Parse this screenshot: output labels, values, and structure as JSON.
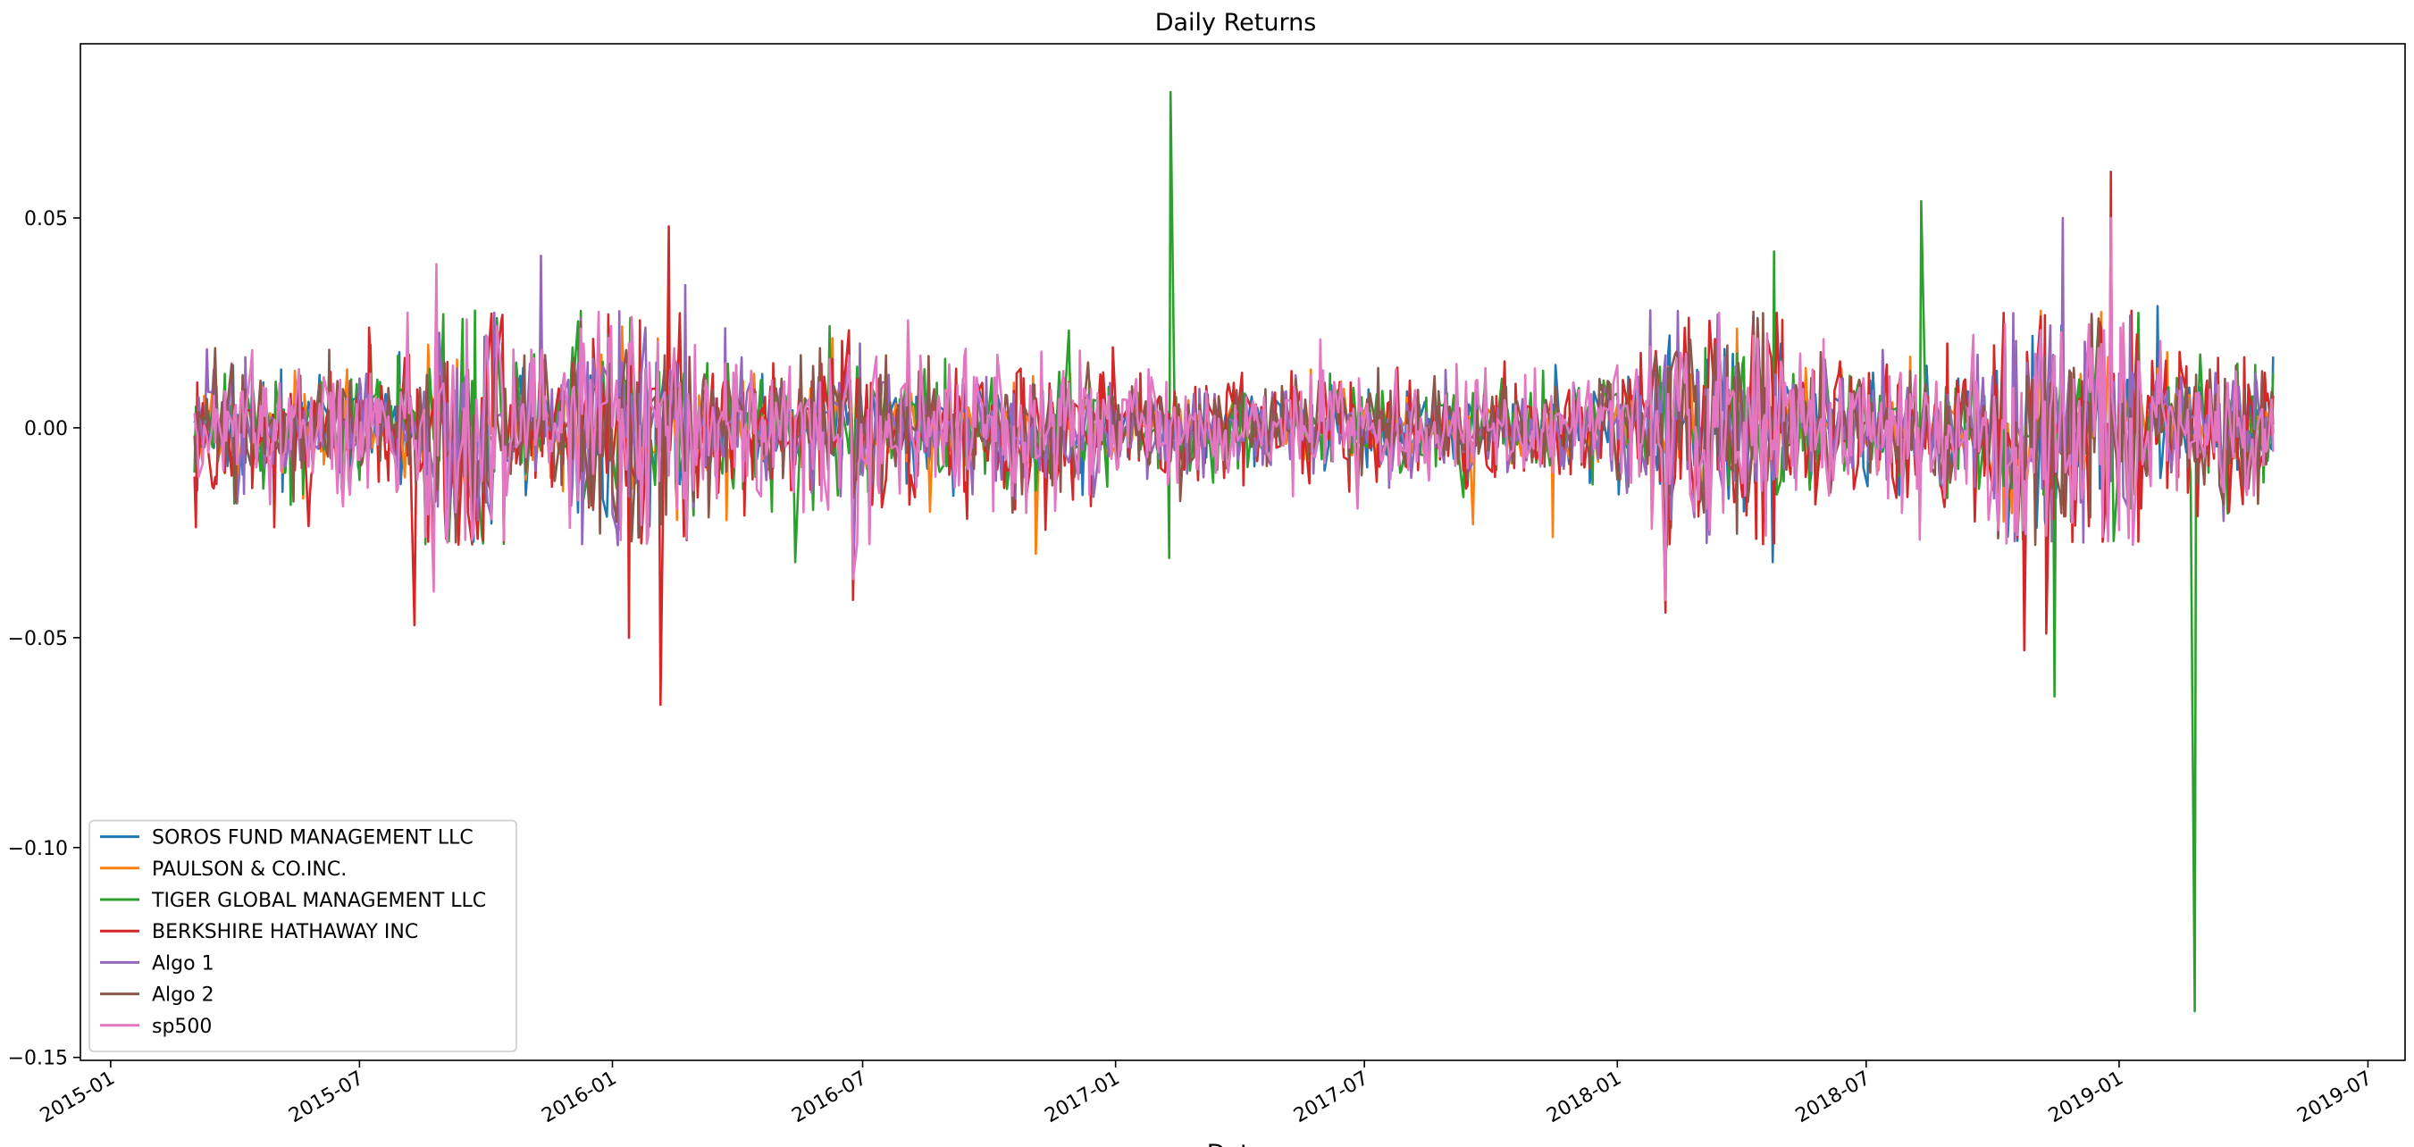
{
  "chart_data": {
    "type": "line",
    "title": "Daily Returns",
    "xlabel": "Date",
    "ylabel": "",
    "xlim": [
      "2014-12-10",
      "2019-07-28"
    ],
    "ylim": [
      -0.1507,
      0.0915
    ],
    "x_ticks": [
      "2015-01",
      "2015-07",
      "2016-01",
      "2016-07",
      "2017-01",
      "2017-07",
      "2018-01",
      "2018-07",
      "2019-01",
      "2019-07"
    ],
    "x_tick_labels": [
      "2015-01",
      "2015-07",
      "2016-01",
      "2016-07",
      "2017-01",
      "2017-07",
      "2018-01",
      "2018-07",
      "2019-01",
      "2019-07"
    ],
    "y_ticks": [
      -0.15,
      -0.1,
      -0.05,
      0.0,
      0.05
    ],
    "y_tick_labels": [
      "−0.15",
      "−0.10",
      "−0.05",
      "0.00",
      "0.05"
    ],
    "date_range": [
      "2015-03-03",
      "2019-04-23"
    ],
    "frequency": "business daily",
    "grid": false,
    "legend_position": "lower-left",
    "series": [
      {
        "name": "SOROS FUND MANAGEMENT LLC",
        "color": "#1f77b4",
        "typical_abs_daily_return": 0.006,
        "extremes": [
          {
            "date": "2015-08-24",
            "value": -0.028
          },
          {
            "date": "2016-01-20",
            "value": -0.025
          },
          {
            "date": "2018-02-05",
            "value": -0.035
          },
          {
            "date": "2018-02-08",
            "value": 0.022
          },
          {
            "date": "2018-04-24",
            "value": -0.032
          },
          {
            "date": "2018-12-24",
            "value": -0.025
          },
          {
            "date": "2019-01-29",
            "value": 0.029
          }
        ]
      },
      {
        "name": "PAULSON & CO.INC.",
        "color": "#ff7f0e",
        "typical_abs_daily_return": 0.005,
        "extremes": [
          {
            "date": "2016-03-24",
            "value": -0.022
          },
          {
            "date": "2016-08-19",
            "value": -0.02
          },
          {
            "date": "2016-11-04",
            "value": -0.03
          },
          {
            "date": "2017-09-18",
            "value": -0.023
          },
          {
            "date": "2017-11-15",
            "value": -0.026
          },
          {
            "date": "2019-02-05",
            "value": 0.018
          }
        ]
      },
      {
        "name": "TIGER GLOBAL MANAGEMENT LLC",
        "color": "#2ca02c",
        "typical_abs_daily_return": 0.007,
        "extremes": [
          {
            "date": "2016-05-13",
            "value": -0.032
          },
          {
            "date": "2017-02-09",
            "value": -0.031
          },
          {
            "date": "2017-02-10",
            "value": 0.08
          },
          {
            "date": "2018-04-25",
            "value": 0.042
          },
          {
            "date": "2018-08-10",
            "value": 0.054
          },
          {
            "date": "2018-11-15",
            "value": -0.064
          },
          {
            "date": "2019-02-25",
            "value": -0.139
          }
        ]
      },
      {
        "name": "BERKSHIRE HATHAWAY INC",
        "color": "#d62728",
        "typical_abs_daily_return": 0.009,
        "extremes": [
          {
            "date": "2015-08-10",
            "value": -0.047
          },
          {
            "date": "2016-01-13",
            "value": -0.05
          },
          {
            "date": "2016-02-05",
            "value": -0.066
          },
          {
            "date": "2016-02-11",
            "value": 0.048
          },
          {
            "date": "2016-06-24",
            "value": -0.041
          },
          {
            "date": "2018-02-05",
            "value": -0.044
          },
          {
            "date": "2018-10-24",
            "value": -0.053
          },
          {
            "date": "2018-11-09",
            "value": -0.049
          },
          {
            "date": "2018-12-26",
            "value": 0.061
          }
        ]
      },
      {
        "name": "Algo 1",
        "color": "#9467bd",
        "typical_abs_daily_return": 0.007,
        "extremes": [
          {
            "date": "2015-11-10",
            "value": 0.041
          },
          {
            "date": "2016-02-23",
            "value": 0.034
          },
          {
            "date": "2016-06-24",
            "value": -0.035
          },
          {
            "date": "2018-03-15",
            "value": 0.027
          },
          {
            "date": "2018-11-21",
            "value": 0.05
          }
        ]
      },
      {
        "name": "Algo 2",
        "color": "#8c564b",
        "typical_abs_daily_return": 0.007,
        "extremes": [
          {
            "date": "2015-08-24",
            "value": -0.034
          },
          {
            "date": "2016-01-15",
            "value": -0.027
          },
          {
            "date": "2018-02-05",
            "value": -0.03
          },
          {
            "date": "2018-12-24",
            "value": -0.023
          }
        ]
      },
      {
        "name": "sp500",
        "color": "#e377c2",
        "typical_abs_daily_return": 0.008,
        "extremes": [
          {
            "date": "2015-08-24",
            "value": -0.039
          },
          {
            "date": "2015-08-26",
            "value": 0.039
          },
          {
            "date": "2016-06-24",
            "value": -0.036
          },
          {
            "date": "2018-02-05",
            "value": -0.041
          },
          {
            "date": "2018-12-24",
            "value": -0.027
          },
          {
            "date": "2018-12-26",
            "value": 0.05
          }
        ]
      }
    ]
  }
}
